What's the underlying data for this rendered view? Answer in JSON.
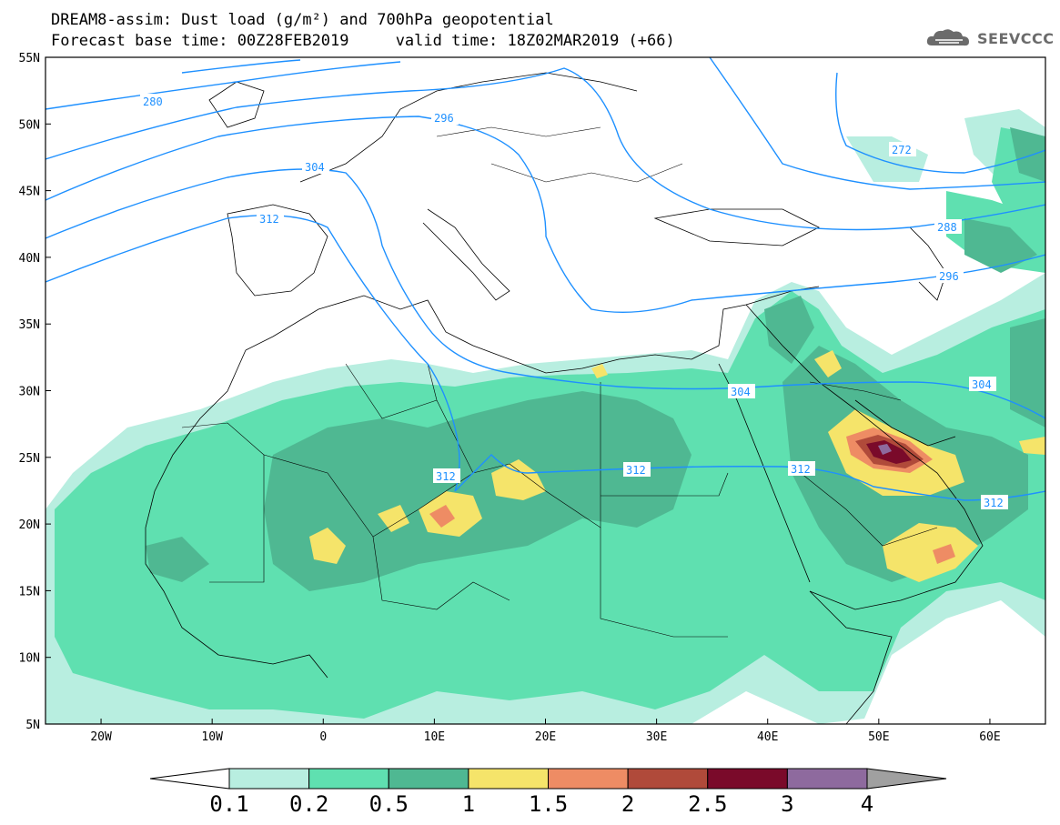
{
  "title": {
    "line1": "DREAM8-assim: Dust load (g/m²) and 700hPa geopotential",
    "line2": "Forecast base time: 00Z28FEB2019     valid time: 18Z02MAR2019 (+66)"
  },
  "logo": {
    "text": "SEEVCCC",
    "icon": "cloud-icon"
  },
  "axes": {
    "lon_labels": [
      "20W",
      "10W",
      "0",
      "10E",
      "20E",
      "30E",
      "40E",
      "50E",
      "60E"
    ],
    "lon_values": [
      -20,
      -10,
      0,
      10,
      20,
      30,
      40,
      50,
      60
    ],
    "lat_labels": [
      "55N",
      "50N",
      "45N",
      "40N",
      "35N",
      "30N",
      "25N",
      "20N",
      "15N",
      "10N",
      "5N"
    ],
    "lat_values": [
      55,
      50,
      45,
      40,
      35,
      30,
      25,
      20,
      15,
      10,
      5
    ],
    "lon_range": [
      -25,
      65
    ],
    "lat_range": [
      5,
      55
    ]
  },
  "colorbar": {
    "labels": [
      "0.1",
      "0.2",
      "0.5",
      "1",
      "1.5",
      "2",
      "2.5",
      "3",
      "4"
    ],
    "colors": [
      "#b8eee0",
      "#5fe0b0",
      "#4fb892",
      "#f5e46a",
      "#ee8c64",
      "#b04a3a",
      "#7a0a2a",
      "#8e6a9e",
      "#a0a0a0"
    ]
  },
  "contours": {
    "color": "#1e90ff",
    "labels": [
      "272",
      "280",
      "288",
      "296",
      "304",
      "312"
    ]
  },
  "dust_colors": {
    "c01": "#b8eee0",
    "c02": "#5fe0b0",
    "c05": "#4fb892",
    "c1": "#f5e46a",
    "c15": "#ee8c64",
    "c2": "#b04a3a",
    "c25": "#7a0a2a",
    "c3": "#8e6a9e"
  }
}
